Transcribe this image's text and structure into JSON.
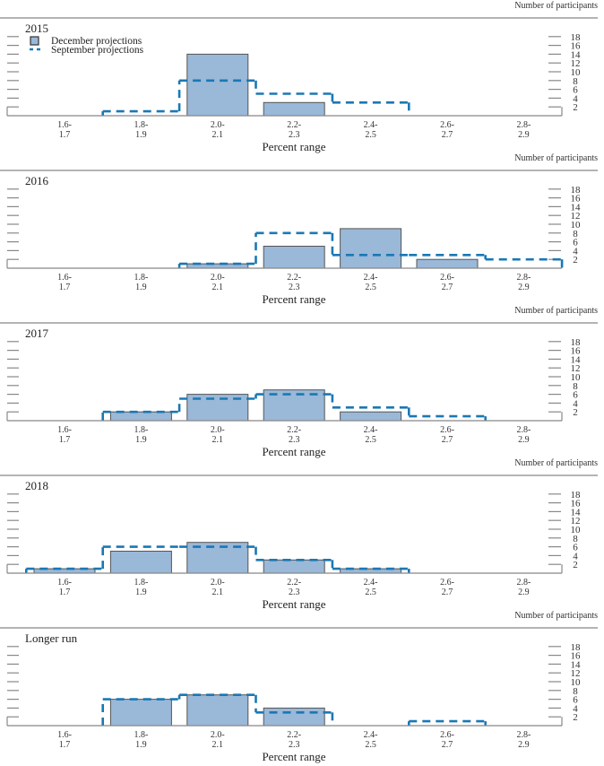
{
  "chart_data": [
    {
      "type": "bar",
      "title": "2015",
      "ylabel": "Number of participants",
      "xlabel": "Percent range",
      "categories": [
        "1.6-1.7",
        "1.8-1.9",
        "2.0-2.1",
        "2.2-2.3",
        "2.4-2.5",
        "2.6-2.7",
        "2.8-2.9"
      ],
      "category_labels": [
        [
          "1.6-",
          "1.7"
        ],
        [
          "1.8-",
          "1.9"
        ],
        [
          "2.0-",
          "2.1"
        ],
        [
          "2.2-",
          "2.3"
        ],
        [
          "2.4-",
          "2.5"
        ],
        [
          "2.6-",
          "2.7"
        ],
        [
          "2.8-",
          "2.9"
        ]
      ],
      "yticks": [
        2,
        4,
        6,
        8,
        10,
        12,
        14,
        16,
        18
      ],
      "ylim": [
        0,
        20
      ],
      "legend": {
        "position": "top-left",
        "entries": [
          "December projections",
          "September projections"
        ]
      },
      "series": [
        {
          "name": "December projections",
          "style": "bar",
          "values": [
            0,
            0,
            14,
            3,
            0,
            0,
            0
          ]
        },
        {
          "name": "September projections",
          "style": "dashed-step",
          "values": [
            0,
            1,
            8,
            5,
            3,
            0,
            0
          ]
        }
      ]
    },
    {
      "type": "bar",
      "title": "2016",
      "ylabel": "Number of participants",
      "xlabel": "Percent range",
      "categories": [
        "1.6-1.7",
        "1.8-1.9",
        "2.0-2.1",
        "2.2-2.3",
        "2.4-2.5",
        "2.6-2.7",
        "2.8-2.9"
      ],
      "category_labels": [
        [
          "1.6-",
          "1.7"
        ],
        [
          "1.8-",
          "1.9"
        ],
        [
          "2.0-",
          "2.1"
        ],
        [
          "2.2-",
          "2.3"
        ],
        [
          "2.4-",
          "2.5"
        ],
        [
          "2.6-",
          "2.7"
        ],
        [
          "2.8-",
          "2.9"
        ]
      ],
      "yticks": [
        2,
        4,
        6,
        8,
        10,
        12,
        14,
        16,
        18
      ],
      "ylim": [
        0,
        20
      ],
      "series": [
        {
          "name": "December projections",
          "style": "bar",
          "values": [
            0,
            0,
            1,
            5,
            9,
            2,
            0
          ]
        },
        {
          "name": "September projections",
          "style": "dashed-step",
          "values": [
            0,
            0,
            1,
            8,
            3,
            3,
            2
          ]
        }
      ]
    },
    {
      "type": "bar",
      "title": "2017",
      "ylabel": "Number of participants",
      "xlabel": "Percent range",
      "categories": [
        "1.6-1.7",
        "1.8-1.9",
        "2.0-2.1",
        "2.2-2.3",
        "2.4-2.5",
        "2.6-2.7",
        "2.8-2.9"
      ],
      "category_labels": [
        [
          "1.6-",
          "1.7"
        ],
        [
          "1.8-",
          "1.9"
        ],
        [
          "2.0-",
          "2.1"
        ],
        [
          "2.2-",
          "2.3"
        ],
        [
          "2.4-",
          "2.5"
        ],
        [
          "2.6-",
          "2.7"
        ],
        [
          "2.8-",
          "2.9"
        ]
      ],
      "yticks": [
        2,
        4,
        6,
        8,
        10,
        12,
        14,
        16,
        18
      ],
      "ylim": [
        0,
        20
      ],
      "series": [
        {
          "name": "December projections",
          "style": "bar",
          "values": [
            0,
            2,
            6,
            7,
            2,
            0,
            0
          ]
        },
        {
          "name": "September projections",
          "style": "dashed-step",
          "values": [
            0,
            2,
            5,
            6,
            3,
            1,
            0
          ]
        }
      ]
    },
    {
      "type": "bar",
      "title": "2018",
      "ylabel": "Number of participants",
      "xlabel": "Percent range",
      "categories": [
        "1.6-1.7",
        "1.8-1.9",
        "2.0-2.1",
        "2.2-2.3",
        "2.4-2.5",
        "2.6-2.7",
        "2.8-2.9"
      ],
      "category_labels": [
        [
          "1.6-",
          "1.7"
        ],
        [
          "1.8-",
          "1.9"
        ],
        [
          "2.0-",
          "2.1"
        ],
        [
          "2.2-",
          "2.3"
        ],
        [
          "2.4-",
          "2.5"
        ],
        [
          "2.6-",
          "2.7"
        ],
        [
          "2.8-",
          "2.9"
        ]
      ],
      "yticks": [
        2,
        4,
        6,
        8,
        10,
        12,
        14,
        16,
        18
      ],
      "ylim": [
        0,
        20
      ],
      "series": [
        {
          "name": "December projections",
          "style": "bar",
          "values": [
            1,
            5,
            7,
            3,
            1,
            0,
            0
          ]
        },
        {
          "name": "September projections",
          "style": "dashed-step",
          "values": [
            1,
            6,
            6,
            3,
            1,
            0,
            0
          ]
        }
      ]
    },
    {
      "type": "bar",
      "title": "Longer run",
      "ylabel": "Number of participants",
      "xlabel": "Percent range",
      "categories": [
        "1.6-1.7",
        "1.8-1.9",
        "2.0-2.1",
        "2.2-2.3",
        "2.4-2.5",
        "2.6-2.7",
        "2.8-2.9"
      ],
      "category_labels": [
        [
          "1.6-",
          "1.7"
        ],
        [
          "1.8-",
          "1.9"
        ],
        [
          "2.0-",
          "2.1"
        ],
        [
          "2.2-",
          "2.3"
        ],
        [
          "2.4-",
          "2.5"
        ],
        [
          "2.6-",
          "2.7"
        ],
        [
          "2.8-",
          "2.9"
        ]
      ],
      "yticks": [
        2,
        4,
        6,
        8,
        10,
        12,
        14,
        16,
        18
      ],
      "ylim": [
        0,
        20
      ],
      "series": [
        {
          "name": "December projections",
          "style": "bar",
          "values": [
            0,
            6,
            7,
            4,
            0,
            0,
            0
          ]
        },
        {
          "name": "September projections",
          "style": "dashed-step",
          "values": [
            0,
            6,
            7,
            3,
            0,
            1,
            0
          ]
        }
      ]
    }
  ],
  "colors": {
    "bar_fill": "#9ab8d8",
    "bar_stroke": "#555555",
    "dashed_line": "#1a78b4",
    "axis": "#888888",
    "text": "#222222"
  }
}
